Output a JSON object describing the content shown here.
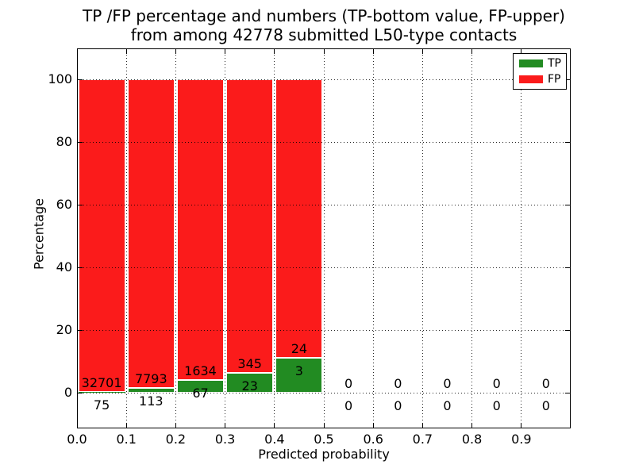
{
  "figure": {
    "title_line1": "TP /FP percentage and numbers (TP-bottom value, FP-upper)",
    "title_line2": "from among 42778 submitted L50-type contacts",
    "xlabel": "Predicted probability",
    "ylabel": "Percentage"
  },
  "legend": {
    "items": [
      {
        "label": "TP",
        "color": "#228b22"
      },
      {
        "label": "FP",
        "color": "#fb1b1b"
      }
    ]
  },
  "chart_data": {
    "type": "bar",
    "stacked": true,
    "title": "TP /FP percentage and numbers (TP-bottom value, FP-upper) from among 42778 submitted L50-type contacts",
    "xlabel": "Predicted probability",
    "ylabel": "Percentage",
    "xlim": [
      0.0,
      1.0
    ],
    "ylim": [
      -11.4,
      109.6
    ],
    "xticks": [
      "0.0",
      "0.1",
      "0.2",
      "0.3",
      "0.4",
      "0.5",
      "0.6",
      "0.7",
      "0.8",
      "0.9"
    ],
    "yticks": [
      "0",
      "20",
      "40",
      "60",
      "80",
      "100"
    ],
    "grid": "dotted black, both axes, drawn above bars",
    "legend_position": "upper right",
    "colors": {
      "tp": "#228b22",
      "fp": "#fb1b1b",
      "bar_edge": "#ffffff"
    },
    "bins": [
      {
        "x_range": [
          0.0,
          0.1
        ],
        "tp": 75,
        "fp": 32701,
        "tp_percent": 0.23
      },
      {
        "x_range": [
          0.1,
          0.2
        ],
        "tp": 113,
        "fp": 7793,
        "tp_percent": 1.43
      },
      {
        "x_range": [
          0.2,
          0.3
        ],
        "tp": 67,
        "fp": 1634,
        "tp_percent": 3.94
      },
      {
        "x_range": [
          0.3,
          0.4
        ],
        "tp": 23,
        "fp": 345,
        "tp_percent": 6.25
      },
      {
        "x_range": [
          0.4,
          0.5
        ],
        "tp": 3,
        "fp": 24,
        "tp_percent": 11.11
      },
      {
        "x_range": [
          0.5,
          0.6
        ],
        "tp": 0,
        "fp": 0,
        "tp_percent": 0
      },
      {
        "x_range": [
          0.6,
          0.7
        ],
        "tp": 0,
        "fp": 0,
        "tp_percent": 0
      },
      {
        "x_range": [
          0.7,
          0.8
        ],
        "tp": 0,
        "fp": 0,
        "tp_percent": 0
      },
      {
        "x_range": [
          0.8,
          0.9
        ],
        "tp": 0,
        "fp": 0,
        "tp_percent": 0
      },
      {
        "x_range": [
          0.9,
          1.0
        ],
        "tp": 0,
        "fp": 0,
        "tp_percent": 0
      }
    ]
  }
}
